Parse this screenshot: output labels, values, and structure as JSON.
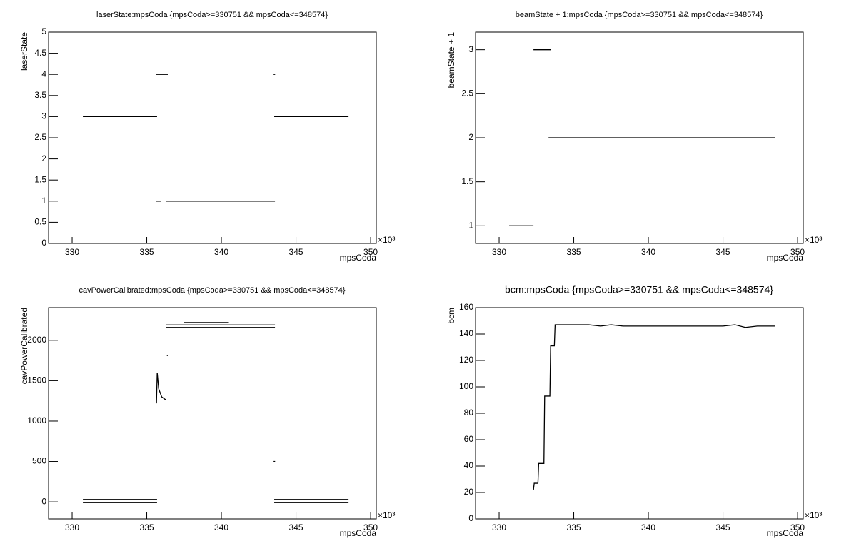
{
  "chart_data": [
    {
      "type": "line",
      "title": "laserState:mpsCoda {mpsCoda>=330751 && mpsCoda<=348574}",
      "x_label": "mpsCoda",
      "y_label": "laserState",
      "x_multiplier": "×10³",
      "color": "#000000",
      "x": [
        330.72,
        335.69,
        null,
        335.64,
        336.41,
        null,
        335.64,
        335.93,
        null,
        336.31,
        343.59,
        null,
        343.5,
        343.6,
        null,
        343.54,
        348.52
      ],
      "values": [
        3,
        3,
        null,
        4,
        4,
        null,
        1,
        1,
        null,
        1,
        1,
        null,
        4,
        4,
        null,
        3,
        3
      ],
      "xlim": [
        328.42,
        350.38
      ],
      "xticks": [
        330,
        335,
        340,
        345,
        350
      ],
      "ylim": [
        0,
        5
      ],
      "yticks": [
        0,
        0.5,
        1,
        1.5,
        2,
        2.5,
        3,
        3.5,
        4,
        4.5,
        5
      ]
    },
    {
      "type": "line",
      "title": "beamState + 1:mpsCoda {mpsCoda>=330751 && mpsCoda<=348574}",
      "x_label": "mpsCoda",
      "y_label": "beamState + 1",
      "x_multiplier": "×10³",
      "color": "#000000",
      "x": [
        330.67,
        332.3,
        null,
        332.3,
        333.46,
        null,
        333.31,
        348.47
      ],
      "values": [
        1,
        1,
        null,
        3,
        3,
        null,
        2,
        2
      ],
      "xlim": [
        328.42,
        350.38
      ],
      "xticks": [
        330,
        335,
        340,
        345,
        350
      ],
      "ylim": [
        0.8,
        3.2
      ],
      "yticks": [
        1,
        1.5,
        2,
        2.5,
        3
      ]
    },
    {
      "type": "line",
      "title": "cavPowerCalibrated:mpsCoda {mpsCoda>=330751 && mpsCoda<=348574}",
      "x_label": "mpsCoda",
      "y_label": "cavPowerCalibrated",
      "x_multiplier": "×10³",
      "color": "#000000",
      "x": [
        330.72,
        335.69,
        null,
        330.72,
        335.69,
        null,
        335.65,
        335.7,
        335.8,
        336.0,
        336.3,
        null,
        336.31,
        343.59,
        null,
        336.31,
        343.59,
        null,
        337.5,
        340.5,
        null,
        343.5,
        343.6,
        null,
        336.35,
        336.4,
        null,
        343.54,
        348.52,
        null,
        343.54,
        348.52
      ],
      "values": [
        30,
        30,
        null,
        -10,
        -10,
        null,
        1220,
        1600,
        1400,
        1300,
        1260,
        null,
        2190,
        2190,
        null,
        2160,
        2160,
        null,
        2220,
        2220,
        null,
        500,
        500,
        null,
        1810,
        1810,
        null,
        30,
        30,
        null,
        -10,
        -10
      ],
      "xlim": [
        328.42,
        350.38
      ],
      "xticks": [
        330,
        335,
        340,
        345,
        350
      ],
      "ylim": [
        -211,
        2405
      ],
      "yticks": [
        0,
        500,
        1000,
        1500,
        2000
      ]
    },
    {
      "type": "line",
      "title": "bcm:mpsCoda {mpsCoda>=330751 && mpsCoda<=348574}",
      "x_label": "mpsCoda",
      "y_label": "bcm",
      "x_multiplier": "×10³",
      "color": "#000000",
      "x": [
        332.3,
        332.35,
        332.6,
        332.65,
        333.0,
        333.05,
        333.4,
        333.45,
        333.7,
        333.75,
        334.5,
        335.3,
        336,
        336.8,
        337.5,
        338.3,
        339,
        339.8,
        340.5,
        341.3,
        342,
        342.8,
        343.5,
        344.3,
        345,
        345.8,
        346.5,
        347.3,
        348,
        348.5
      ],
      "values": [
        22,
        27,
        27,
        42,
        42,
        93,
        93,
        131,
        131,
        147,
        147,
        147,
        147,
        146,
        147,
        146,
        146,
        146,
        146,
        146,
        146,
        146,
        146,
        146,
        146,
        147,
        145,
        146,
        146,
        146
      ],
      "xlim": [
        328.42,
        350.38
      ],
      "xticks": [
        330,
        335,
        340,
        345,
        350
      ],
      "ylim": [
        0,
        160
      ],
      "yticks": [
        0,
        20,
        40,
        60,
        80,
        100,
        120,
        140,
        160
      ]
    }
  ]
}
